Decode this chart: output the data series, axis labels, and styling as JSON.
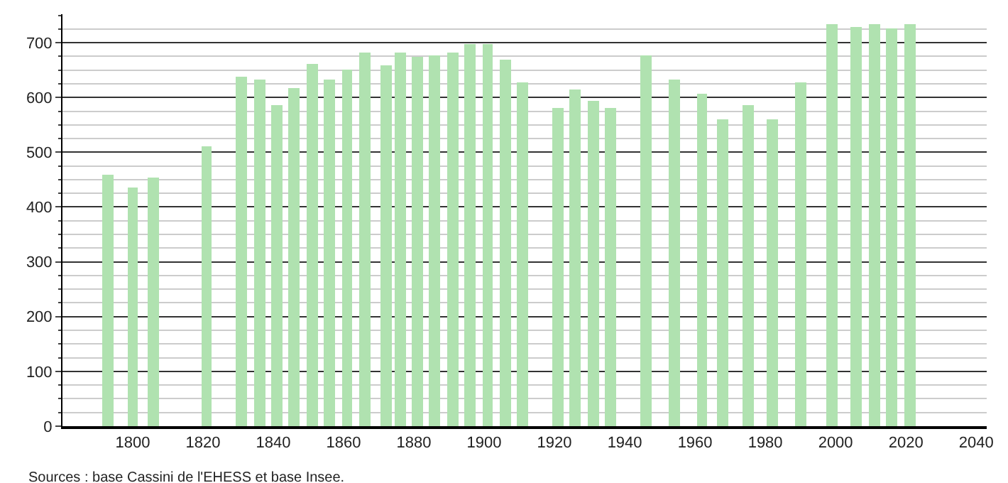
{
  "chart_data": {
    "type": "bar",
    "x": [
      1793,
      1800,
      1806,
      1821,
      1831,
      1836,
      1841,
      1846,
      1851,
      1856,
      1861,
      1866,
      1872,
      1876,
      1881,
      1886,
      1891,
      1896,
      1901,
      1906,
      1911,
      1921,
      1926,
      1931,
      1936,
      1946,
      1954,
      1962,
      1968,
      1975,
      1982,
      1990,
      1999,
      2006,
      2011,
      2016,
      2021
    ],
    "values": [
      458,
      435,
      453,
      512,
      639,
      634,
      586,
      617,
      660,
      632,
      652,
      681,
      658,
      681,
      675,
      678,
      681,
      698,
      698,
      669,
      627,
      582,
      614,
      594,
      582,
      678,
      634,
      606,
      559,
      585,
      560,
      627,
      733,
      729,
      735,
      726,
      735
    ],
    "color": "#b0e2b0",
    "xlim": [
      1780,
      2043
    ],
    "xticks": [
      1800,
      1820,
      1840,
      1860,
      1880,
      1900,
      1920,
      1940,
      1960,
      1980,
      2000,
      2020,
      2040
    ],
    "ylim": [
      0,
      752
    ],
    "yticks": [
      0,
      100,
      200,
      300,
      400,
      500,
      600,
      700
    ],
    "grid": "y",
    "annotations": [
      "Sources : base Cassini de l'EHESS et base Insee."
    ]
  }
}
